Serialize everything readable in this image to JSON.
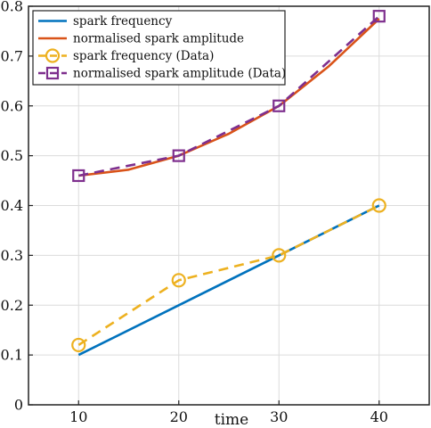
{
  "chart_data": {
    "type": "line",
    "xlabel": "time",
    "ylabel": "",
    "xlim": [
      5,
      45
    ],
    "ylim": [
      0,
      0.8
    ],
    "xticks": [
      10,
      20,
      30,
      40
    ],
    "yticks": [
      0,
      0.1,
      0.2,
      0.3,
      0.4,
      0.5,
      0.6,
      0.7,
      0.8
    ],
    "xtick_labels": [
      "10",
      "20",
      "30",
      "40"
    ],
    "ytick_labels": [
      "0",
      "0.1",
      "0.2",
      "0.3",
      "0.4",
      "0.5",
      "0.6",
      "0.7",
      "0.8"
    ],
    "grid": true,
    "legend_position": "top-left",
    "series": [
      {
        "name": "spark frequency",
        "style": "solid",
        "color": "#0072BD",
        "x": [
          10,
          20,
          30,
          40
        ],
        "values": [
          0.1,
          0.2,
          0.3,
          0.4
        ]
      },
      {
        "name": "normalised spark amplitude",
        "style": "solid",
        "color": "#D95319",
        "x": [
          10,
          15,
          20,
          25,
          30,
          35,
          40
        ],
        "values": [
          0.46,
          0.472,
          0.5,
          0.544,
          0.6,
          0.68,
          0.775
        ]
      },
      {
        "name": "spark frequency (Data)",
        "style": "dashed",
        "marker": "circle",
        "color": "#EDB120",
        "x": [
          10,
          20,
          30,
          40
        ],
        "values": [
          0.12,
          0.25,
          0.3,
          0.4
        ]
      },
      {
        "name": "normalised spark amplitude (Data)",
        "style": "dashed",
        "marker": "square",
        "color": "#7E2F8E",
        "x": [
          10,
          20,
          30,
          40
        ],
        "values": [
          0.46,
          0.5,
          0.6,
          0.78
        ]
      }
    ]
  }
}
